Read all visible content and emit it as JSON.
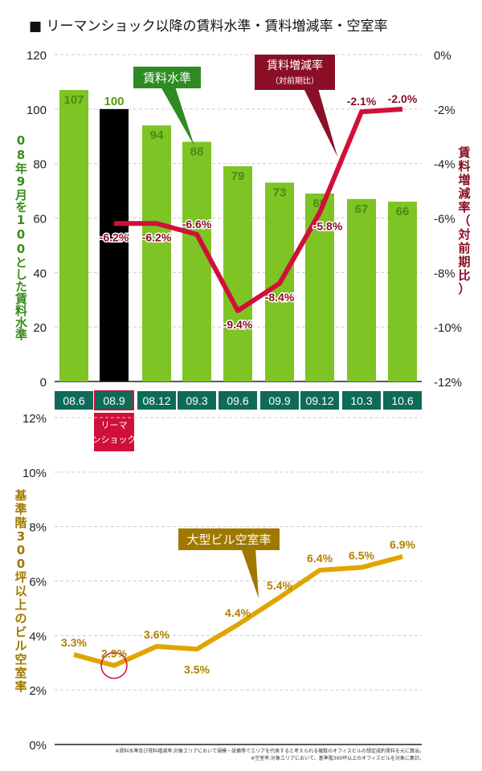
{
  "title": "■ リーマンショック以降の賃料水準・賃料増減率・空室率",
  "colors": {
    "bar": "#7dc424",
    "bar_highlight": "#000000",
    "rent_change": "#d0103a",
    "vacancy": "#e2a400",
    "category_box": "#0e6b57",
    "callout_green": "#2e8b22",
    "callout_red": "#8a0f26",
    "callout_gold": "#a07800"
  },
  "chart_data": [
    {
      "type": "bar",
      "categories": [
        "08.6",
        "08.9",
        "08.12",
        "09.3",
        "09.6",
        "09.9",
        "09.12",
        "10.3",
        "10.6"
      ],
      "values": [
        107,
        100,
        94,
        88,
        79,
        73,
        69,
        67,
        66
      ],
      "ylim": [
        0,
        120
      ],
      "yticks": [
        "0",
        "20",
        "40",
        "60",
        "80",
        "100",
        "120"
      ],
      "ylabel": "08年9月を100とした賃料水準",
      "series_name": "賃料水準",
      "highlight": "08.9",
      "grid": true
    },
    {
      "type": "line",
      "categories": [
        "08.9",
        "08.12",
        "09.3",
        "09.6",
        "09.9",
        "09.12",
        "10.3",
        "10.6"
      ],
      "values": [
        -6.2,
        -6.2,
        -6.6,
        -9.4,
        -8.4,
        -5.8,
        -2.1,
        -2.0
      ],
      "labels": [
        "-6.2%",
        "-6.2%",
        "-6.6%",
        "-9.4%",
        "-8.4%",
        "-5.8%",
        "-2.1%",
        "-2.0%"
      ],
      "ylim": [
        -12,
        0
      ],
      "yticks": [
        "-12%",
        "-10%",
        "-8%",
        "-6%",
        "-4%",
        "-2%",
        "0%"
      ],
      "ylabel": "賃料増減率（対前期比）",
      "series_name": "賃料増減率",
      "series_sub": "（対前期比）"
    },
    {
      "type": "line",
      "categories": [
        "08.6",
        "08.9",
        "08.12",
        "09.3",
        "09.6",
        "09.9",
        "09.12",
        "10.3",
        "10.6"
      ],
      "values": [
        3.3,
        2.9,
        3.6,
        3.5,
        4.4,
        5.4,
        6.4,
        6.5,
        6.9
      ],
      "labels": [
        "3.3%",
        "2.9%",
        "3.6%",
        "3.5%",
        "4.4%",
        "5.4%",
        "6.4%",
        "6.5%",
        "6.9%"
      ],
      "ylim": [
        0,
        12
      ],
      "yticks": [
        "0%",
        "2%",
        "4%",
        "6%",
        "8%",
        "10%",
        "12%"
      ],
      "ylabel": "基準階300坪以上のビル空室率",
      "series_name": "大型ビル空室率",
      "grid": true
    }
  ],
  "annotation": "リーマンショック",
  "footnotes": [
    "※賃料水準及び賃料増減率:対象エリアにおいて規模・設備等でエリアを代表すると考えられる複数のオフィスビルの想定成約賃料を元に算出。",
    "※空室率:対象エリアにおいて、基準階300坪以上のオフィスビルを対象に集計。"
  ]
}
